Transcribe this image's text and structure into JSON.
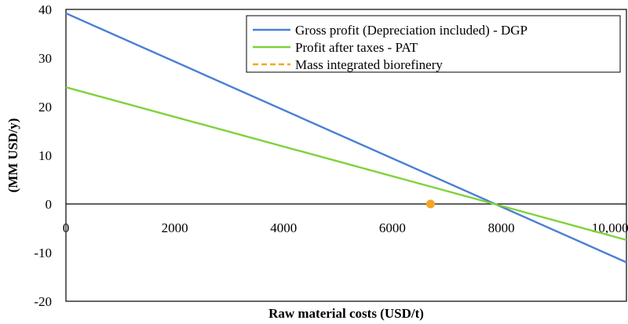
{
  "chart_data": {
    "type": "line",
    "title": "",
    "xlabel": "Raw material costs (USD/t)",
    "ylabel": "(MM USD/y)",
    "xlim": [
      0,
      10300
    ],
    "ylim": [
      -20,
      40
    ],
    "x_ticks": [
      {
        "value": 0,
        "label": "0"
      },
      {
        "value": 2000,
        "label": "2000"
      },
      {
        "value": 4000,
        "label": "4000"
      },
      {
        "value": 6000,
        "label": "6000"
      },
      {
        "value": 8000,
        "label": "8000"
      },
      {
        "value": 10000,
        "label": "10,000"
      }
    ],
    "y_ticks": [
      {
        "value": 40,
        "label": "40"
      },
      {
        "value": 30,
        "label": "30"
      },
      {
        "value": 20,
        "label": "20"
      },
      {
        "value": 10,
        "label": "10"
      },
      {
        "value": 0,
        "label": "0"
      },
      {
        "value": -10,
        "label": "-10"
      },
      {
        "value": -20,
        "label": "-20"
      }
    ],
    "grid": false,
    "legend_position": "top-right",
    "series": [
      {
        "name": "Gross profit (Depreciation included) - DGP",
        "color": "#4a7fd4",
        "style": "solid",
        "x": [
          0,
          10300
        ],
        "y": [
          39.2,
          -12.0
        ]
      },
      {
        "name": "Profit after taxes - PAT",
        "color": "#7ed23a",
        "style": "solid",
        "x": [
          0,
          10300
        ],
        "y": [
          24.0,
          -7.4
        ]
      },
      {
        "name": "Mass integrated biorefinery",
        "color": "#f5a623",
        "style": "dashed",
        "marker": "point",
        "x": [
          6700
        ],
        "y": [
          0
        ]
      }
    ]
  }
}
